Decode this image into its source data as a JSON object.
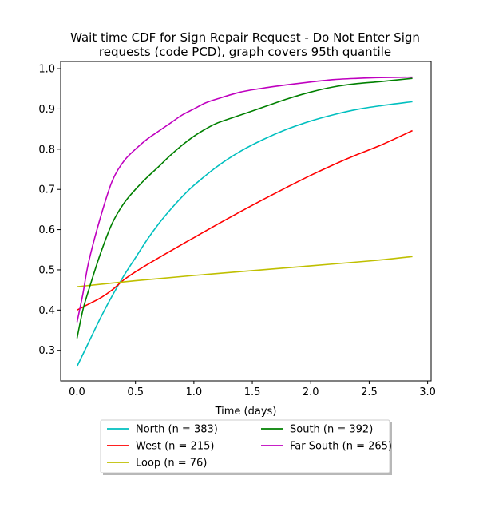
{
  "chart_data": {
    "type": "line",
    "title_line1": "Wait time CDF for Sign Repair Request - Do Not Enter Sign",
    "title_line2": "requests (code PCD), graph covers 95th quantile",
    "xlabel": "Time (days)",
    "ylabel": "",
    "xlim": [
      -0.14,
      3.03
    ],
    "ylim": [
      0.224,
      1.018
    ],
    "xticks": [
      0.0,
      0.5,
      1.0,
      1.5,
      2.0,
      2.5,
      3.0
    ],
    "xtick_labels": [
      "0.0",
      "0.5",
      "1.0",
      "1.5",
      "2.0",
      "2.5",
      "3.0"
    ],
    "yticks": [
      0.3,
      0.4,
      0.5,
      0.6,
      0.7,
      0.8,
      0.9,
      1.0
    ],
    "ytick_labels": [
      "0.3",
      "0.4",
      "0.5",
      "0.6",
      "0.7",
      "0.8",
      "0.9",
      "1.0"
    ],
    "grid": false,
    "legend_position": "below plot, two columns",
    "series": [
      {
        "name": "North (n = 383)",
        "color": "#00bfbf",
        "points": [
          [
            0,
            0.26
          ],
          [
            0.1,
            0.32
          ],
          [
            0.2,
            0.38
          ],
          [
            0.3,
            0.435
          ],
          [
            0.4,
            0.485
          ],
          [
            0.5,
            0.53
          ],
          [
            0.6,
            0.575
          ],
          [
            0.7,
            0.615
          ],
          [
            0.8,
            0.65
          ],
          [
            0.9,
            0.682
          ],
          [
            1.0,
            0.71
          ],
          [
            1.2,
            0.757
          ],
          [
            1.4,
            0.795
          ],
          [
            1.6,
            0.825
          ],
          [
            1.8,
            0.85
          ],
          [
            2.0,
            0.87
          ],
          [
            2.2,
            0.886
          ],
          [
            2.4,
            0.899
          ],
          [
            2.6,
            0.908
          ],
          [
            2.87,
            0.918
          ]
        ]
      },
      {
        "name": "West (n = 215)",
        "color": "#ff0000",
        "points": [
          [
            0,
            0.4
          ],
          [
            0.1,
            0.415
          ],
          [
            0.2,
            0.43
          ],
          [
            0.3,
            0.45
          ],
          [
            0.4,
            0.475
          ],
          [
            0.5,
            0.495
          ],
          [
            0.6,
            0.513
          ],
          [
            0.8,
            0.547
          ],
          [
            1.0,
            0.58
          ],
          [
            1.2,
            0.613
          ],
          [
            1.4,
            0.645
          ],
          [
            1.6,
            0.676
          ],
          [
            1.8,
            0.706
          ],
          [
            2.0,
            0.735
          ],
          [
            2.2,
            0.762
          ],
          [
            2.4,
            0.787
          ],
          [
            2.6,
            0.81
          ],
          [
            2.87,
            0.846
          ]
        ]
      },
      {
        "name": "Loop (n = 76)",
        "color": "#bfbf00",
        "points": [
          [
            0,
            0.458
          ],
          [
            0.5,
            0.473
          ],
          [
            1.0,
            0.486
          ],
          [
            1.5,
            0.498
          ],
          [
            2.0,
            0.51
          ],
          [
            2.5,
            0.522
          ],
          [
            2.87,
            0.533
          ]
        ]
      },
      {
        "name": "South (n = 392)",
        "color": "#008000",
        "points": [
          [
            0,
            0.33
          ],
          [
            0.05,
            0.4
          ],
          [
            0.1,
            0.45
          ],
          [
            0.2,
            0.54
          ],
          [
            0.3,
            0.615
          ],
          [
            0.4,
            0.665
          ],
          [
            0.5,
            0.7
          ],
          [
            0.6,
            0.73
          ],
          [
            0.7,
            0.757
          ],
          [
            0.8,
            0.785
          ],
          [
            0.9,
            0.81
          ],
          [
            1.0,
            0.832
          ],
          [
            1.1,
            0.85
          ],
          [
            1.2,
            0.865
          ],
          [
            1.4,
            0.885
          ],
          [
            1.6,
            0.905
          ],
          [
            1.8,
            0.925
          ],
          [
            2.0,
            0.942
          ],
          [
            2.2,
            0.955
          ],
          [
            2.4,
            0.963
          ],
          [
            2.6,
            0.968
          ],
          [
            2.87,
            0.976
          ]
        ]
      },
      {
        "name": "Far South (n = 265)",
        "color": "#bf00bf",
        "points": [
          [
            0,
            0.37
          ],
          [
            0.05,
            0.44
          ],
          [
            0.1,
            0.52
          ],
          [
            0.2,
            0.63
          ],
          [
            0.3,
            0.72
          ],
          [
            0.4,
            0.77
          ],
          [
            0.5,
            0.8
          ],
          [
            0.6,
            0.825
          ],
          [
            0.7,
            0.845
          ],
          [
            0.8,
            0.865
          ],
          [
            0.9,
            0.885
          ],
          [
            1.0,
            0.9
          ],
          [
            1.1,
            0.915
          ],
          [
            1.2,
            0.925
          ],
          [
            1.4,
            0.942
          ],
          [
            1.6,
            0.952
          ],
          [
            1.8,
            0.96
          ],
          [
            2.0,
            0.967
          ],
          [
            2.2,
            0.973
          ],
          [
            2.4,
            0.976
          ],
          [
            2.6,
            0.978
          ],
          [
            2.87,
            0.979
          ]
        ]
      }
    ]
  }
}
